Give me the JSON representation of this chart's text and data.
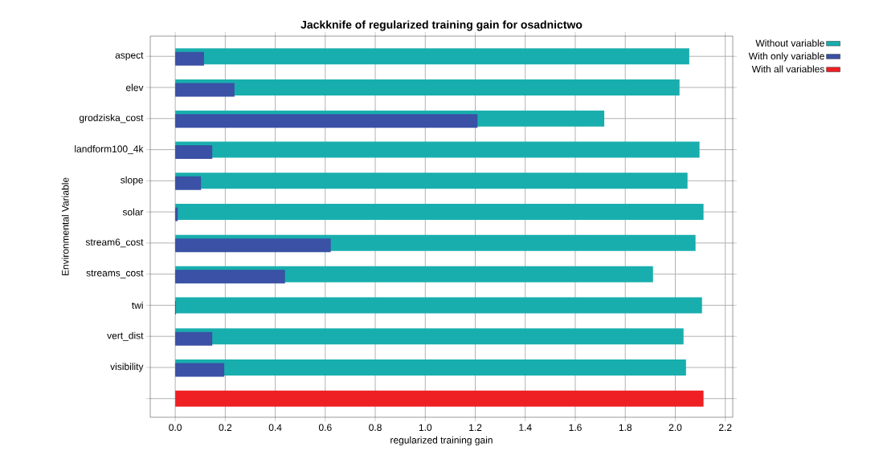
{
  "chart_data": {
    "type": "bar",
    "orientation": "horizontal",
    "title": "Jackknife of regularized training gain for osadnictwo",
    "xlabel": "regularized training gain",
    "ylabel": "Environmental Variable",
    "categories": [
      "aspect",
      "elev",
      "grodziska_cost",
      "landform100_4k",
      "slope",
      "solar",
      "stream6_cost",
      "streams_cost",
      "twi",
      "vert_dist",
      "visibility",
      null
    ],
    "series": [
      {
        "name": "Without variable",
        "color": "#19aeae",
        "values": [
          2.056,
          2.017,
          1.716,
          2.097,
          2.049,
          2.113,
          2.081,
          1.911,
          2.107,
          2.033,
          2.043,
          null
        ]
      },
      {
        "name": "With only variable",
        "color": "#3a51a5",
        "values": [
          0.115,
          0.237,
          1.209,
          0.148,
          0.103,
          0.01,
          0.622,
          0.439,
          0.003,
          0.148,
          0.196,
          null
        ]
      },
      {
        "name": "With all variables",
        "color": "#ee2024",
        "values": [
          null,
          null,
          null,
          null,
          null,
          null,
          null,
          null,
          null,
          null,
          null,
          2.113
        ]
      }
    ],
    "xlim": [
      -0.1,
      2.23
    ],
    "xticks": [
      {
        "value": 0,
        "label": "0.0"
      },
      0.2,
      0.4,
      0.6,
      0.8,
      {
        "value": 1,
        "label": "1.0"
      },
      1.2,
      1.4,
      1.6,
      1.8,
      {
        "value": 2,
        "label": "2.0"
      },
      2.2
    ],
    "grid": true,
    "legend": "top right"
  }
}
